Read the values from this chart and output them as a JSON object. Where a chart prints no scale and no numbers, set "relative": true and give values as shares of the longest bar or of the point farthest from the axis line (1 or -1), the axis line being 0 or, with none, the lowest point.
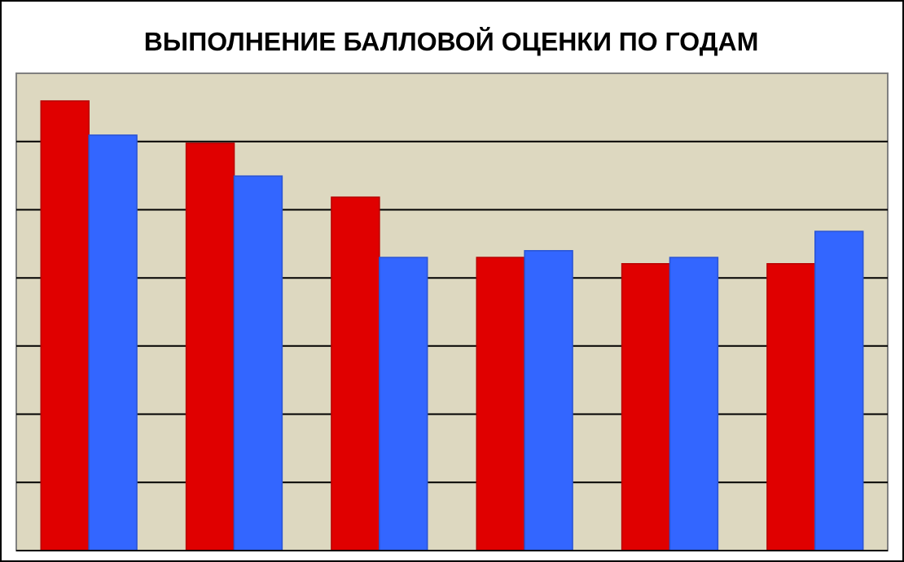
{
  "chart_data": {
    "type": "bar",
    "title": "ВЫПОЛНЕНИЕ БАЛЛОВОЙ ОЦЕНКИ ПО ГОДАМ",
    "relative": true,
    "grid": "y",
    "categories": [
      null,
      null,
      null,
      null,
      null,
      null
    ],
    "series": [
      {
        "color": "#e00000",
        "values": [
          1,
          0.906,
          0.786,
          0.652,
          0.638,
          0.638
        ]
      },
      {
        "color": "#3366ff",
        "values": [
          0.924,
          0.833,
          0.652,
          0.667,
          0.652,
          0.71
        ]
      }
    ]
  }
}
